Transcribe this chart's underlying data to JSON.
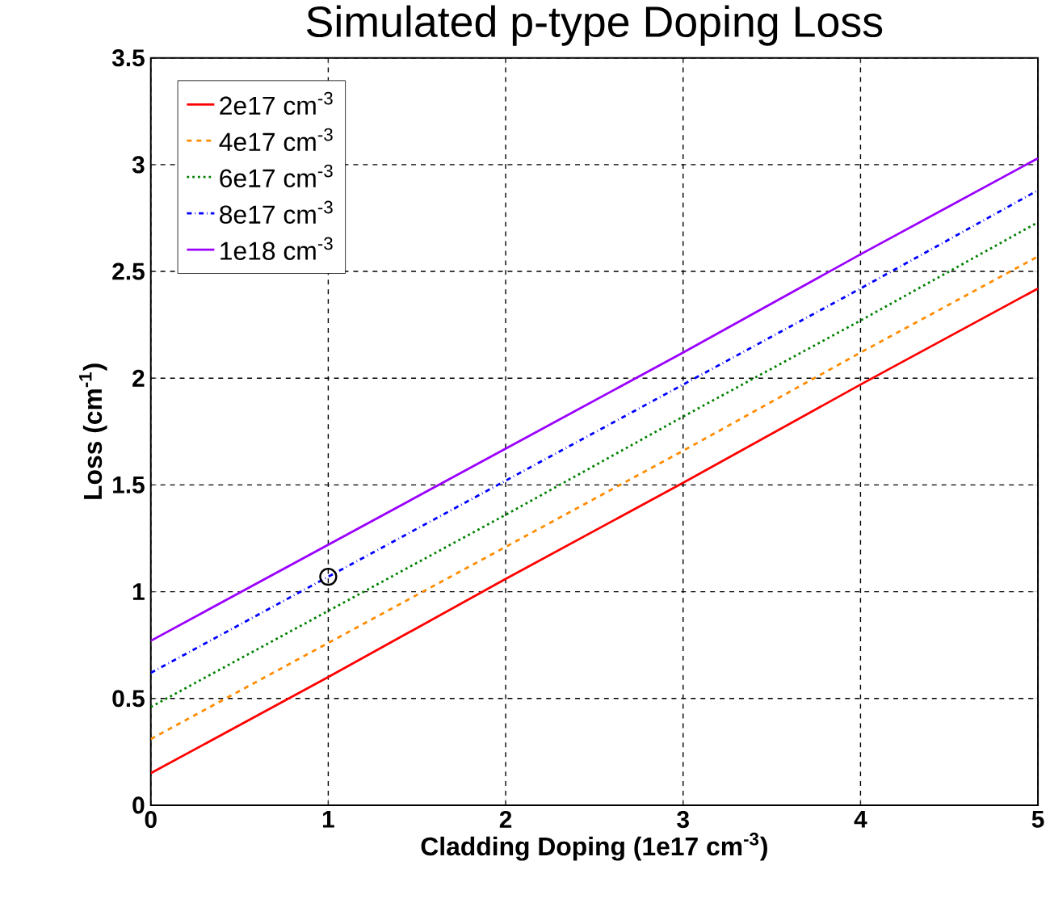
{
  "chart_data": {
    "type": "line",
    "title": "Simulated p-type Doping Loss",
    "xlabel": "Cladding Doping (1e17 cm$^{-3}$)",
    "ylabel": "Loss (cm$^{-1}$)",
    "xlim": [
      0,
      5
    ],
    "ylim": [
      0,
      3.5
    ],
    "xticks": [
      0,
      1,
      2,
      3,
      4,
      5
    ],
    "yticks": [
      0,
      0.5,
      1,
      1.5,
      2,
      2.5,
      3,
      3.5
    ],
    "grid": true,
    "legend": "top left",
    "marker": "none",
    "series": [
      {
        "name": "2e17 cm$^{-3}$",
        "color": "#ff0000",
        "line_style": "solid",
        "x": [
          0,
          1,
          2,
          3,
          4,
          5
        ],
        "values": [
          0.15,
          0.6,
          1.06,
          1.51,
          1.97,
          2.42
        ]
      },
      {
        "name": "4e17 cm$^{-3}$",
        "color": "#ff8c00",
        "line_style": "dashed",
        "x": [
          0,
          1,
          2,
          3,
          4,
          5
        ],
        "values": [
          0.31,
          0.76,
          1.21,
          1.66,
          2.12,
          2.57
        ]
      },
      {
        "name": "6e17 cm$^{-3}$",
        "color": "#008000",
        "line_style": "dotted",
        "x": [
          0,
          1,
          2,
          3,
          4,
          5
        ],
        "values": [
          0.46,
          0.91,
          1.36,
          1.82,
          2.27,
          2.73
        ]
      },
      {
        "name": "8e17 cm$^{-3}$",
        "color": "#0000ff",
        "line_style": "dashdot",
        "x": [
          0,
          1,
          2,
          3,
          4,
          5
        ],
        "values": [
          0.62,
          1.07,
          1.52,
          1.97,
          2.42,
          2.88
        ]
      },
      {
        "name": "1e18 cm$^{-3}$",
        "color": "#9b00ff",
        "line_style": "solid",
        "x": [
          0,
          1,
          2,
          3,
          4,
          5
        ],
        "values": [
          0.77,
          1.22,
          1.67,
          2.12,
          2.58,
          3.03
        ]
      },
      {
        "type": "scatter",
        "color": "#000000",
        "marker": "circle",
        "x": [
          1
        ],
        "values": [
          1.07
        ]
      }
    ]
  }
}
